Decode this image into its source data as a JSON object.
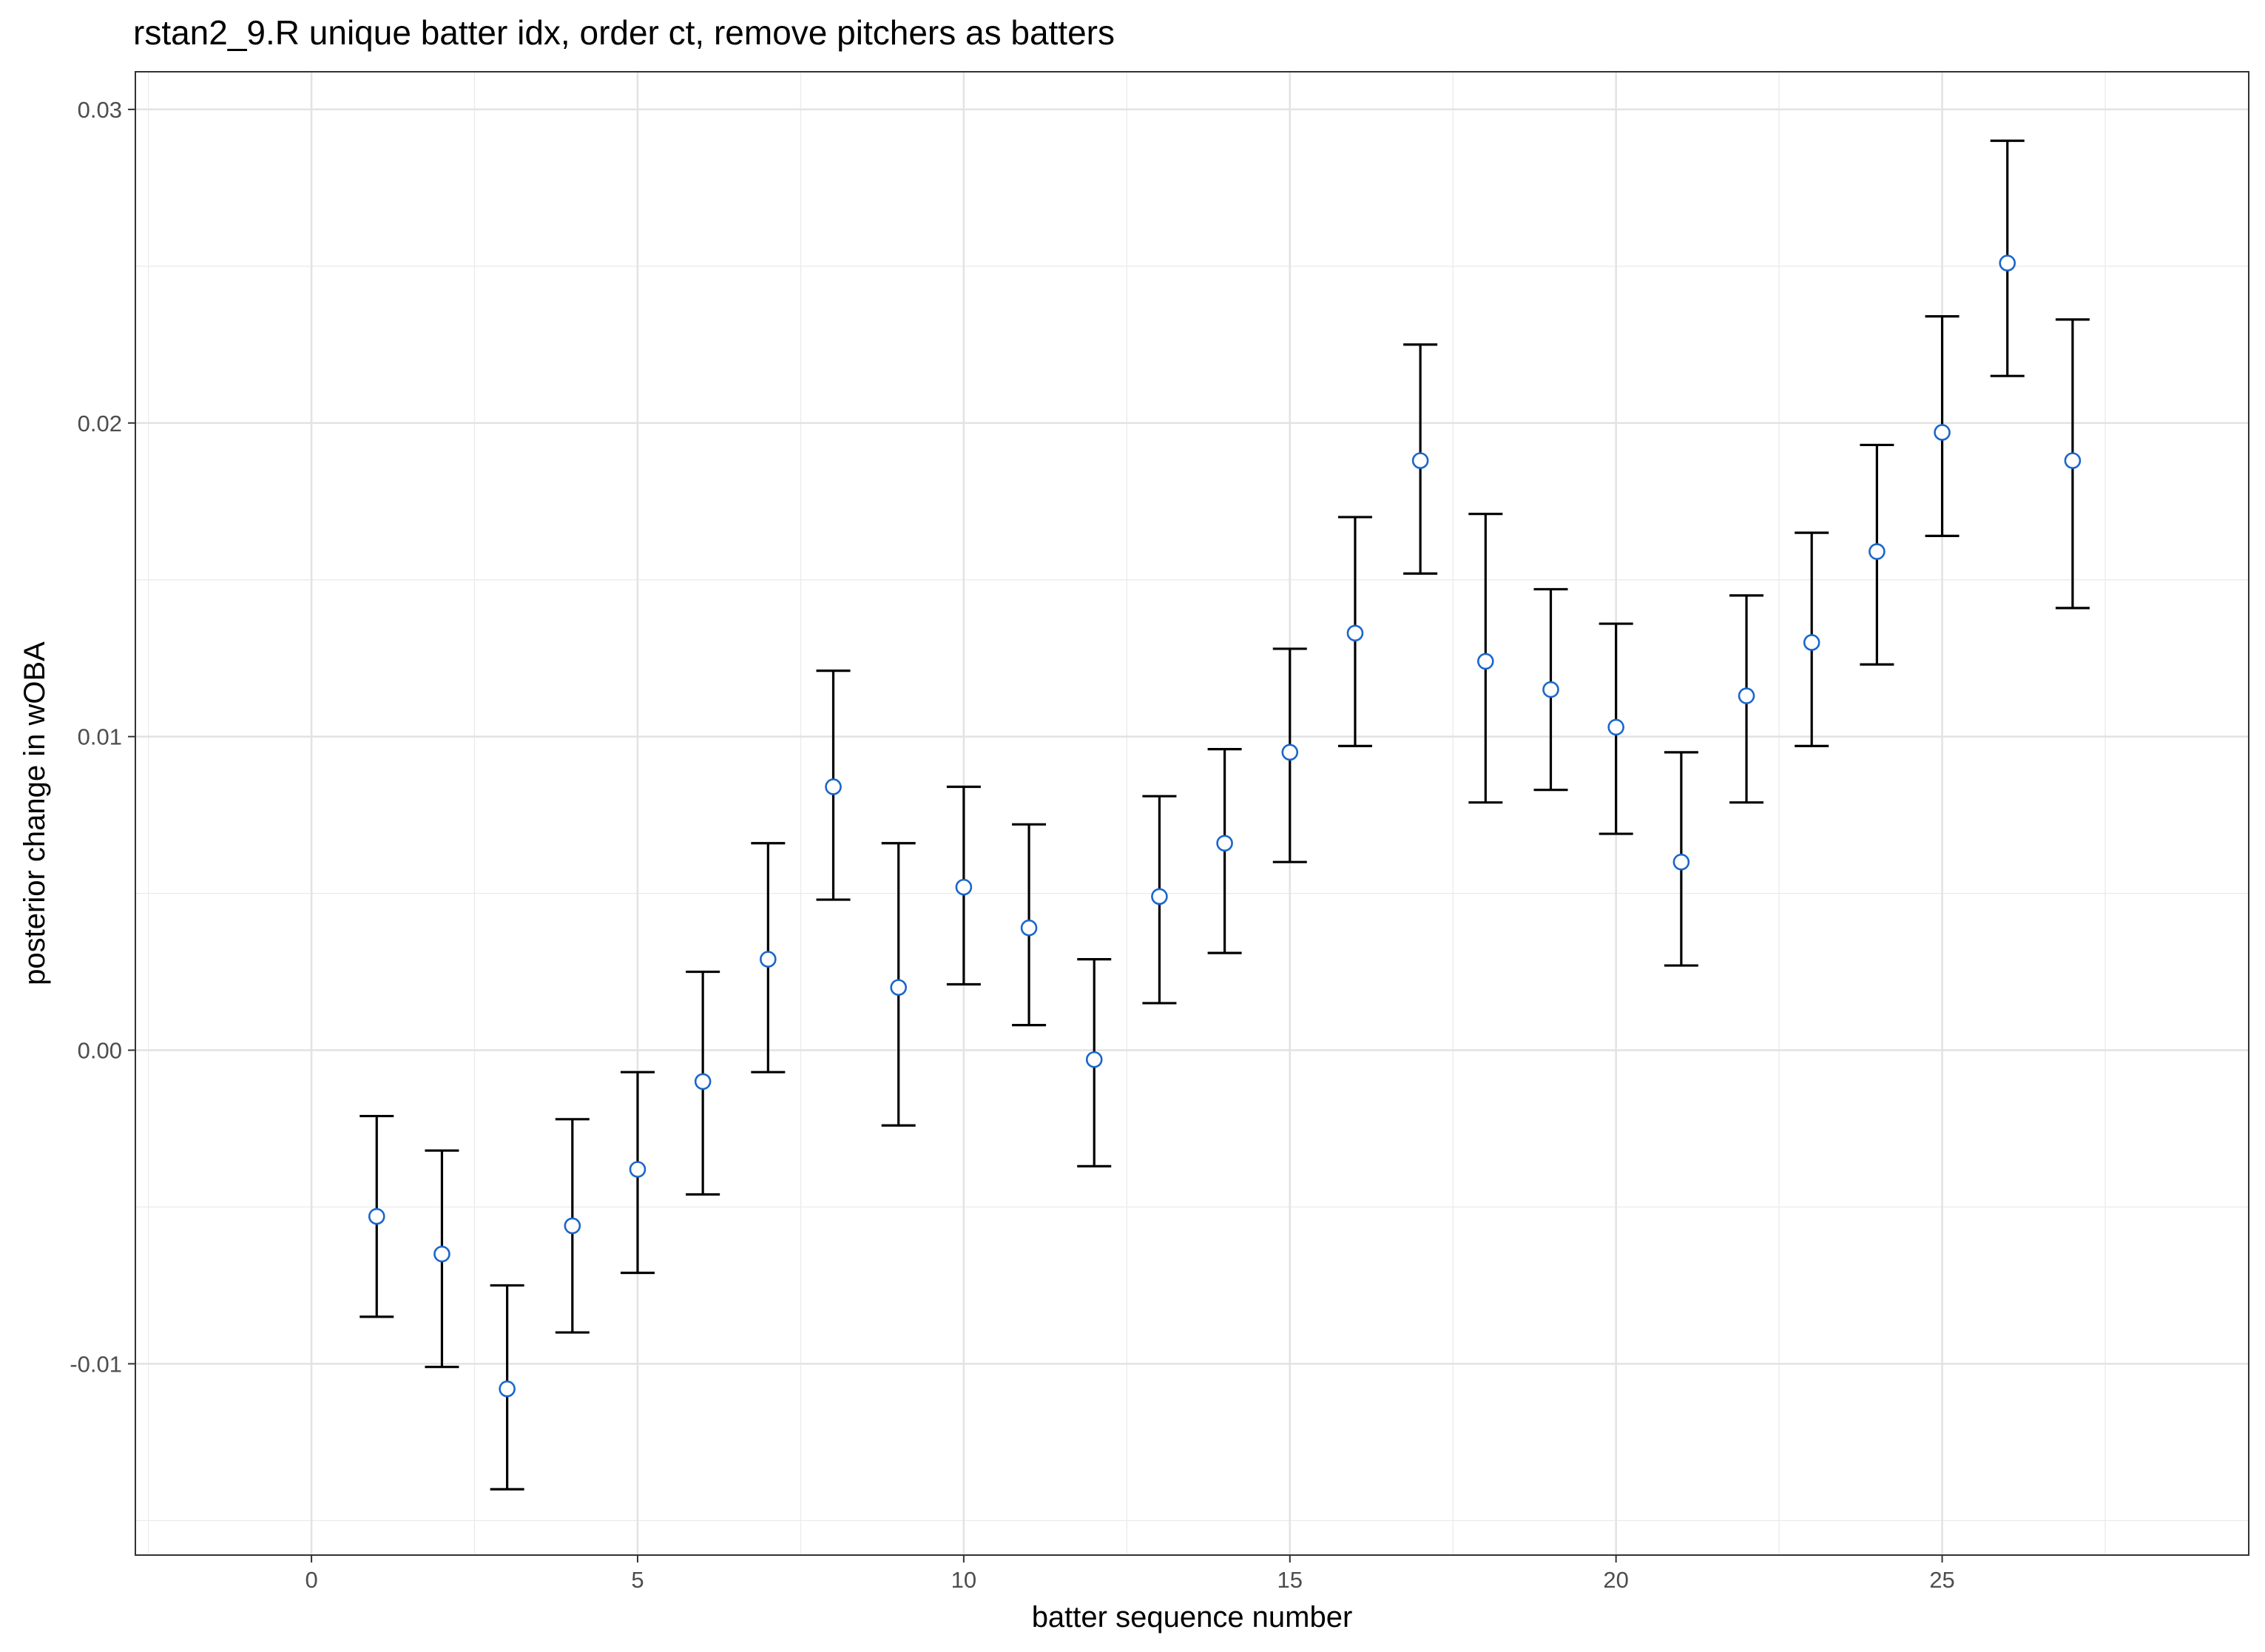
{
  "chart_data": {
    "type": "scatter",
    "title": "rstan2_9.R unique batter idx, order ct, remove pitchers as batters",
    "xlabel": "batter sequence number",
    "ylabel": "posterior change in wOBA",
    "xlim": [
      -2.7,
      29.7
    ],
    "ylim": [
      -0.0161,
      0.0312
    ],
    "x_ticks": [
      0,
      5,
      10,
      15,
      20,
      25
    ],
    "x_tick_labels": [
      "0",
      "5",
      "10",
      "15",
      "20",
      "25"
    ],
    "y_ticks": [
      -0.01,
      0.0,
      0.01,
      0.02,
      0.03
    ],
    "y_tick_labels": [
      "-0.01",
      "0.00",
      "0.01",
      "0.02",
      "0.03"
    ],
    "grid": true,
    "point_color": "#1a66cc",
    "errorbar_color": "#000000",
    "series": [
      {
        "x": [
          1,
          2,
          3,
          4,
          5,
          6,
          7,
          8,
          9,
          10,
          11,
          12,
          13,
          14,
          15,
          16,
          17,
          18,
          19,
          20,
          21,
          22,
          23,
          24,
          25,
          26,
          27
        ],
        "y": [
          -0.0053,
          -0.0065,
          -0.0108,
          -0.0056,
          -0.0038,
          -0.001,
          0.0029,
          0.0084,
          0.002,
          0.0052,
          0.0039,
          -0.0003,
          0.0049,
          0.0066,
          0.0095,
          0.0133,
          0.0188,
          0.0124,
          0.0115,
          0.0103,
          0.006,
          0.0113,
          0.013,
          0.0159,
          0.0197,
          0.0251,
          0.0188
        ],
        "lower": [
          -0.0085,
          -0.0101,
          -0.014,
          -0.009,
          -0.0071,
          -0.0046,
          -0.0007,
          0.0048,
          -0.0024,
          0.0021,
          0.0008,
          -0.0037,
          0.0015,
          0.0031,
          0.006,
          0.0097,
          0.0152,
          0.0079,
          0.0083,
          0.0069,
          0.0027,
          0.0079,
          0.0097,
          0.0123,
          0.0164,
          0.0215,
          0.0141
        ],
        "upper": [
          -0.0021,
          -0.0032,
          -0.0075,
          -0.0022,
          -0.0007,
          0.0025,
          0.0066,
          0.0121,
          0.0066,
          0.0084,
          0.0072,
          0.0029,
          0.0081,
          0.0096,
          0.0128,
          0.017,
          0.0225,
          0.0171,
          0.0147,
          0.0136,
          0.0095,
          0.0145,
          0.0165,
          0.0193,
          0.0234,
          0.029,
          0.0233
        ]
      }
    ]
  }
}
